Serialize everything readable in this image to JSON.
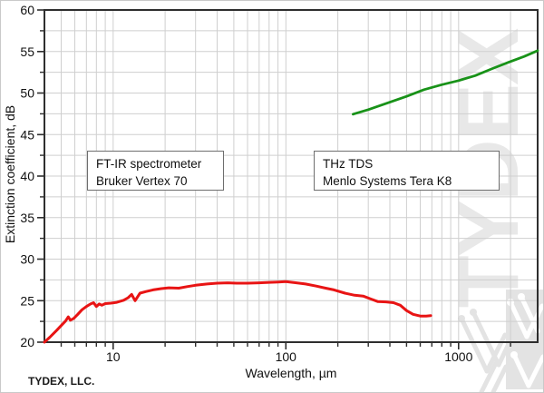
{
  "footer": {
    "company": "TYDEX, LLC."
  },
  "watermark": {
    "text": "TYDEX"
  },
  "annotations": [
    {
      "line1": "FT-IR spectrometer",
      "line2": "Bruker Vertex 70"
    },
    {
      "line1": "THz TDS",
      "line2": "Menlo Systems Tera K8"
    }
  ],
  "chart_data": {
    "type": "line",
    "title": "",
    "xlabel": "Wavelength, µm",
    "ylabel": "Extinction coefficient, dB",
    "x_scale": "log",
    "xlim": [
      4,
      2870
    ],
    "ylim": [
      20,
      60
    ],
    "x_major_ticks": [
      10,
      100,
      1000
    ],
    "x_minor_ticks": [
      5,
      6,
      7,
      8,
      9,
      20,
      30,
      40,
      50,
      60,
      70,
      80,
      90,
      200,
      300,
      400,
      500,
      600,
      700,
      800,
      900,
      2000
    ],
    "y_major_ticks": [
      20,
      25,
      30,
      35,
      40,
      45,
      50,
      55,
      60
    ],
    "y_minor_step": 2.5,
    "grid": true,
    "legend_position": "none",
    "colors": {
      "grid": "#cfcfcf",
      "axis": "#2e2e2e",
      "text": "#111111",
      "watermark": "#e8e8e8"
    },
    "series": [
      {
        "name": "FT-IR spectrometer Bruker Vertex 70",
        "color": "#e81414",
        "width": 3,
        "points": [
          [
            4,
            20
          ],
          [
            4.3,
            20.6
          ],
          [
            4.7,
            21.4
          ],
          [
            5,
            22
          ],
          [
            5.3,
            22.55
          ],
          [
            5.5,
            23.05
          ],
          [
            5.65,
            22.65
          ],
          [
            5.9,
            22.85
          ],
          [
            6.2,
            23.3
          ],
          [
            6.6,
            23.9
          ],
          [
            7,
            24.3
          ],
          [
            7.4,
            24.6
          ],
          [
            7.7,
            24.75
          ],
          [
            8,
            24.3
          ],
          [
            8.3,
            24.6
          ],
          [
            8.6,
            24.45
          ],
          [
            9,
            24.65
          ],
          [
            9.7,
            24.7
          ],
          [
            10.5,
            24.8
          ],
          [
            11.5,
            25.05
          ],
          [
            12.2,
            25.35
          ],
          [
            12.8,
            25.75
          ],
          [
            13.4,
            25
          ],
          [
            14.3,
            25.9
          ],
          [
            15.5,
            26.1
          ],
          [
            17,
            26.3
          ],
          [
            19,
            26.45
          ],
          [
            21,
            26.55
          ],
          [
            24,
            26.5
          ],
          [
            27,
            26.7
          ],
          [
            30,
            26.85
          ],
          [
            35,
            27
          ],
          [
            40,
            27.1
          ],
          [
            46,
            27.15
          ],
          [
            52,
            27.1
          ],
          [
            60,
            27.1
          ],
          [
            70,
            27.15
          ],
          [
            80,
            27.2
          ],
          [
            90,
            27.25
          ],
          [
            100,
            27.3
          ],
          [
            115,
            27.15
          ],
          [
            130,
            27
          ],
          [
            150,
            26.75
          ],
          [
            170,
            26.5
          ],
          [
            190,
            26.3
          ],
          [
            220,
            25.9
          ],
          [
            250,
            25.65
          ],
          [
            280,
            25.55
          ],
          [
            310,
            25.2
          ],
          [
            340,
            24.9
          ],
          [
            380,
            24.85
          ],
          [
            420,
            24.75
          ],
          [
            460,
            24.45
          ],
          [
            500,
            23.8
          ],
          [
            545,
            23.35
          ],
          [
            600,
            23.15
          ],
          [
            650,
            23.15
          ],
          [
            690,
            23.2
          ]
        ]
      },
      {
        "name": "THz TDS Menlo Systems Tera K8",
        "color": "#189218",
        "width": 2.8,
        "points": [
          [
            245,
            47.45
          ],
          [
            300,
            48
          ],
          [
            400,
            48.9
          ],
          [
            500,
            49.6
          ],
          [
            630,
            50.4
          ],
          [
            800,
            51
          ],
          [
            1000,
            51.5
          ],
          [
            1250,
            52.1
          ],
          [
            1550,
            52.9
          ],
          [
            1950,
            53.7
          ],
          [
            2400,
            54.4
          ],
          [
            2870,
            55.1
          ]
        ]
      }
    ]
  }
}
